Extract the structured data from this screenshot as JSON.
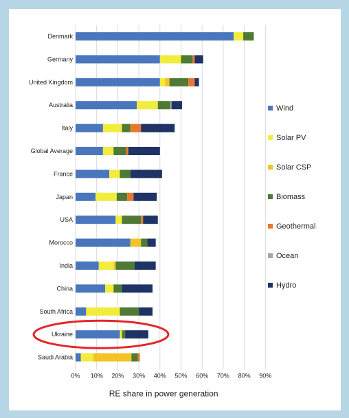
{
  "chart_data": {
    "type": "bar",
    "stacked": true,
    "orientation": "horizontal",
    "xlabel": "RE share in power generation",
    "xlim": [
      0,
      90
    ],
    "x_ticks": [
      "0%",
      "10%",
      "20%",
      "30%",
      "40%",
      "50%",
      "60%",
      "70%",
      "80%",
      "90%"
    ],
    "grid": true,
    "legend_position": "right",
    "categories": [
      "Denmark",
      "Germany",
      "United Kingdom",
      "Australia",
      "Italy",
      "Global Average",
      "France",
      "Japan",
      "USA",
      "Morocco",
      "India",
      "China",
      "South Africa",
      "Ukraine",
      "Saudi Arabia"
    ],
    "series": [
      {
        "name": "Wind",
        "color": "#4a76bd",
        "values": [
          75,
          40,
          40,
          29,
          13,
          13,
          16,
          9.5,
          19,
          26,
          11,
          14,
          5,
          21,
          2.5
        ]
      },
      {
        "name": "Solar PV",
        "color": "#f2ec3c",
        "values": [
          4.5,
          10,
          2.5,
          10,
          9,
          5,
          5,
          10,
          3,
          0,
          7,
          4,
          16,
          1,
          6
        ]
      },
      {
        "name": "Solar CSP",
        "color": "#f3c325",
        "values": [
          0,
          0,
          2,
          0,
          0,
          0,
          0,
          0,
          0,
          5,
          1,
          0,
          0,
          0,
          18
        ]
      },
      {
        "name": "Biomass",
        "color": "#4e7a35",
        "values": [
          5,
          5.5,
          9,
          6,
          4,
          6,
          5,
          5,
          9,
          3,
          9,
          4,
          9,
          1.5,
          3
        ]
      },
      {
        "name": "Geothermal",
        "color": "#e7782f",
        "values": [
          0,
          1,
          3,
          0,
          5,
          1,
          0,
          3,
          1,
          0,
          0,
          0,
          0,
          0,
          1
        ]
      },
      {
        "name": "Ocean",
        "color": "#a6a6a6",
        "values": [
          0,
          0,
          0,
          0.5,
          0,
          0,
          0,
          0,
          0,
          0,
          0,
          0,
          0,
          0,
          0
        ]
      },
      {
        "name": "Hydro",
        "color": "#1f3366",
        "values": [
          0,
          4,
          2,
          5,
          16,
          15,
          15,
          11,
          7,
          4,
          10,
          14.5,
          6.5,
          11,
          0
        ]
      }
    ]
  }
}
